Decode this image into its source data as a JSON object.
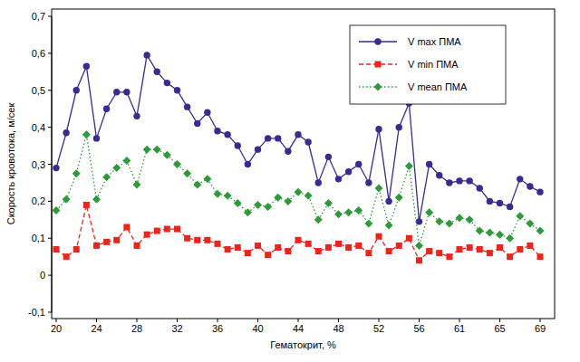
{
  "chart_data": {
    "type": "line",
    "x_label": "Гематокрит, %",
    "y_label": "Скорость кровотока, м/сек",
    "categories": [
      20,
      null,
      null,
      null,
      24,
      null,
      null,
      null,
      28,
      null,
      null,
      null,
      32,
      null,
      null,
      null,
      36,
      null,
      null,
      null,
      40,
      null,
      null,
      null,
      44,
      null,
      null,
      null,
      48,
      null,
      null,
      null,
      52,
      null,
      null,
      null,
      56,
      null,
      null,
      null,
      61,
      null,
      null,
      null,
      65,
      null,
      null,
      null,
      69
    ],
    "ylim": [
      -0.1,
      0.7
    ],
    "yticks": [
      {
        "value": -0.1,
        "label": "-0,1"
      },
      0,
      {
        "value": 0.1,
        "label": "0,1"
      },
      {
        "value": 0.2,
        "label": "0,2"
      },
      {
        "value": 0.3,
        "label": "0,3"
      },
      {
        "value": 0.4,
        "label": "0,4"
      },
      {
        "value": 0.5,
        "label": "0,5"
      },
      {
        "value": 0.6,
        "label": "0,6"
      },
      {
        "value": 0.7,
        "label": "0,7"
      }
    ],
    "grid": false,
    "legend": "upper right",
    "series": [
      {
        "name": "V max ПМА",
        "color": "#3b2a8f",
        "marker": "circle",
        "line_style": "solid",
        "values": [
          0.29,
          0.385,
          0.5,
          0.565,
          0.37,
          0.45,
          0.495,
          0.495,
          0.43,
          0.595,
          0.55,
          0.52,
          0.5,
          0.455,
          0.41,
          0.44,
          0.39,
          0.38,
          0.35,
          0.3,
          0.34,
          0.37,
          0.37,
          0.335,
          0.38,
          0.36,
          0.25,
          0.32,
          0.26,
          0.28,
          0.3,
          0.25,
          0.395,
          0.2,
          0.4,
          0.465,
          0.145,
          0.3,
          0.27,
          0.25,
          0.255,
          0.255,
          0.235,
          0.2,
          0.195,
          0.185,
          0.26,
          0.24,
          0.225
        ]
      },
      {
        "name": "V min ПМА",
        "color": "#e8261c",
        "marker": "square",
        "line_style": "dashed",
        "values": [
          0.07,
          0.05,
          0.07,
          0.19,
          0.08,
          0.09,
          0.095,
          0.13,
          0.08,
          0.11,
          0.12,
          0.125,
          0.125,
          0.1,
          0.095,
          0.095,
          0.085,
          0.07,
          0.075,
          0.06,
          0.08,
          0.055,
          0.075,
          0.065,
          0.095,
          0.085,
          0.065,
          0.075,
          0.085,
          0.075,
          0.08,
          0.06,
          0.105,
          0.065,
          0.08,
          0.1,
          0.04,
          0.065,
          0.06,
          0.05,
          0.07,
          0.075,
          0.07,
          0.06,
          0.075,
          0.05,
          0.07,
          0.08,
          0.05
        ]
      },
      {
        "name": "V mean ПМА",
        "color": "#2e9a3a",
        "marker": "diamond",
        "line_style": "dotted",
        "values": [
          0.175,
          0.205,
          0.275,
          0.38,
          0.205,
          0.265,
          0.29,
          0.31,
          0.245,
          0.34,
          0.34,
          0.325,
          0.3,
          0.275,
          0.245,
          0.26,
          0.22,
          0.215,
          0.195,
          0.17,
          0.19,
          0.185,
          0.21,
          0.2,
          0.225,
          0.215,
          0.15,
          0.195,
          0.165,
          0.17,
          0.175,
          0.14,
          0.235,
          0.135,
          0.21,
          0.295,
          0.08,
          0.17,
          0.145,
          0.14,
          0.155,
          0.15,
          0.12,
          0.115,
          0.11,
          0.1,
          0.16,
          0.14,
          0.12
        ]
      }
    ]
  }
}
